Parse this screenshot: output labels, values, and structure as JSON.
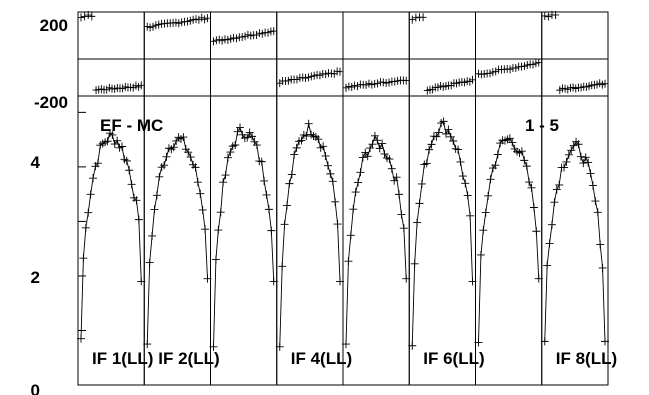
{
  "chart_data": {
    "type": "line",
    "annotation_left": "EF - MC",
    "annotation_right": "1 - 5",
    "panel_labels": [
      "IF 1(LL)",
      "IF 2(LL)",
      "IF 4(LL)",
      "IF 6(LL)",
      "IF 8(LL)"
    ],
    "phase_axis": {
      "ylim": [
        -200,
        200
      ],
      "tick_labels": [
        "200",
        "-200"
      ]
    },
    "amp_axis": {
      "ylim": [
        0,
        5.3
      ],
      "tick_labels": [
        "4",
        "2",
        "0"
      ]
    },
    "num_panels": 8,
    "panel_label_panels": [
      0,
      1,
      3,
      5,
      7
    ],
    "amp_peaks": [
      4.55,
      4.5,
      4.65,
      4.7,
      4.45,
      4.75,
      4.5,
      4.35
    ],
    "amp_edges": [
      0.85,
      1.9,
      0.75,
      1.95,
      0.7,
      1.9,
      0.7,
      1.9,
      0.75,
      1.95,
      0.72,
      1.9,
      0.78,
      1.95,
      0.8,
      0.8
    ],
    "phase_series": [
      {
        "offset": [
          190,
          -165
        ],
        "slope": 12
      },
      {
        "offset": [
          150
        ],
        "slope": 22
      },
      {
        "offset": [
          85
        ],
        "slope": 25
      },
      {
        "offset": [
          -110
        ],
        "slope": 25
      },
      {
        "offset": [
          -140
        ],
        "slope": 18
      },
      {
        "offset": [
          195,
          -155
        ],
        "slope": 30
      },
      {
        "offset": [
          -70
        ],
        "slope": 28
      },
      {
        "offset": [
          200,
          -160
        ],
        "slope": 20
      }
    ],
    "colors": {
      "line": "#000000",
      "background": "#ffffff"
    }
  }
}
